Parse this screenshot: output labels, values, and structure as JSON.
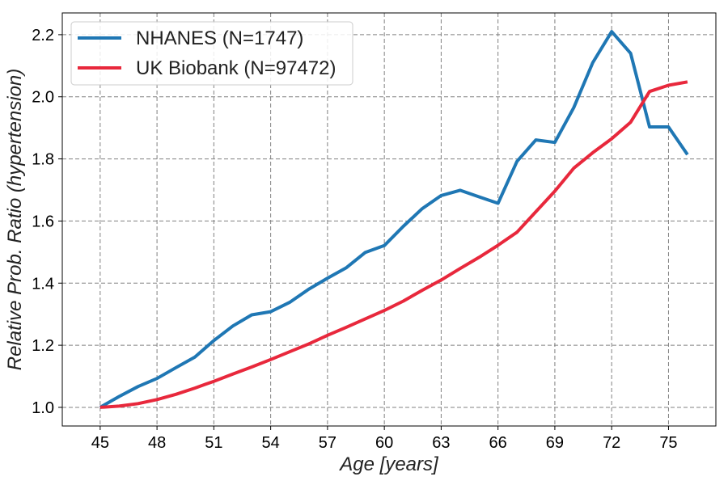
{
  "chart_data": {
    "type": "line",
    "xlabel": "Age [years]",
    "ylabel": "Relative Prob. Ratio (hypertension)",
    "xlim": [
      43,
      77.5
    ],
    "ylim": [
      0.94,
      2.27
    ],
    "x_ticks": [
      45,
      48,
      51,
      54,
      57,
      60,
      63,
      66,
      69,
      72,
      75
    ],
    "y_ticks": [
      1.0,
      1.2,
      1.4,
      1.6,
      1.8,
      2.0,
      2.2
    ],
    "grid": true,
    "legend_position": "top-left",
    "x": [
      45,
      46,
      47,
      48,
      49,
      50,
      51,
      52,
      53,
      54,
      55,
      56,
      57,
      58,
      59,
      60,
      61,
      62,
      63,
      64,
      65,
      66,
      67,
      68,
      69,
      70,
      71,
      72,
      73,
      74,
      75,
      76
    ],
    "series": [
      {
        "name": "NHANES (N=1747)",
        "color": "#1f77b4",
        "values": [
          1.0,
          1.035,
          1.067,
          1.093,
          1.128,
          1.162,
          1.215,
          1.262,
          1.298,
          1.308,
          1.338,
          1.38,
          1.416,
          1.45,
          1.499,
          1.521,
          1.583,
          1.64,
          1.682,
          1.699,
          1.678,
          1.657,
          1.792,
          1.861,
          1.853,
          1.965,
          2.11,
          2.21,
          2.14,
          1.903,
          1.903,
          1.814
        ]
      },
      {
        "name": "UK Biobank (N=97472)",
        "color": "#e8283c",
        "values": [
          1.0,
          1.004,
          1.012,
          1.025,
          1.042,
          1.062,
          1.084,
          1.107,
          1.13,
          1.154,
          1.179,
          1.204,
          1.232,
          1.258,
          1.285,
          1.312,
          1.342,
          1.377,
          1.41,
          1.447,
          1.483,
          1.522,
          1.564,
          1.63,
          1.696,
          1.77,
          1.82,
          1.865,
          1.918,
          2.017,
          2.037,
          2.048
        ]
      }
    ]
  }
}
